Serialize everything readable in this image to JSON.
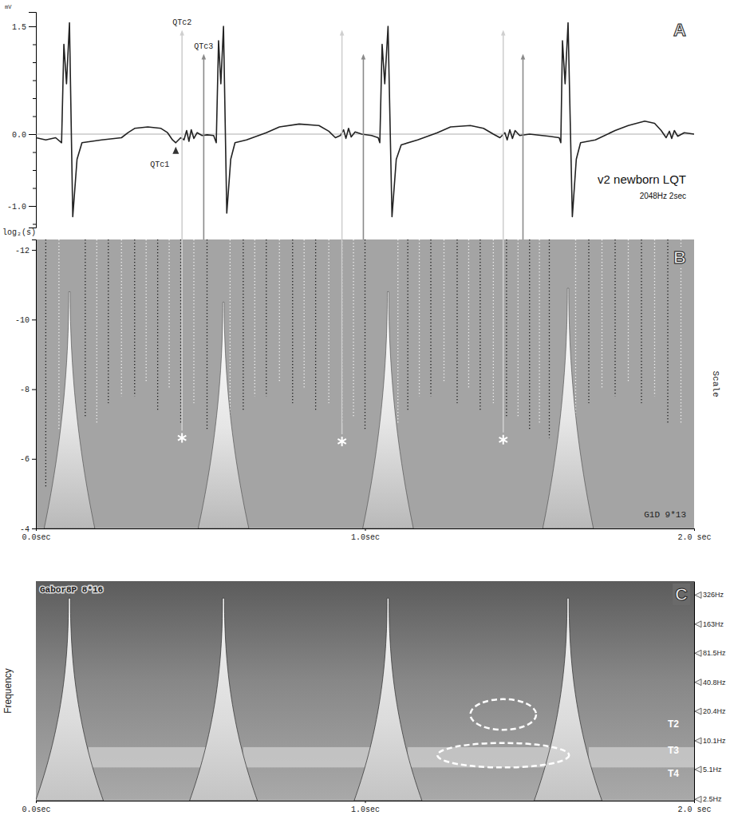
{
  "chart_data": [
    {
      "type": "line",
      "panel": "A",
      "ylabel": "mV",
      "title": "v2 newborn LQT",
      "subtitle": "2048Hz 2sec",
      "xlim": [
        0,
        2
      ],
      "ylim": [
        -1.3,
        1.7
      ],
      "yticks": [
        1.5,
        {
          "value": 0,
          "label": "0.0"
        },
        {
          "value": -1,
          "label": "-1.0"
        }
      ],
      "yticks_minor": [
        -1.25,
        -0.75,
        -0.5,
        -0.25,
        0.25,
        0.5,
        0.75,
        1,
        1.25
      ],
      "tick_labels": "y",
      "baseline": 0,
      "x": [
        0,
        0.03,
        0.06,
        0.078,
        0.085,
        0.093,
        0.102,
        0.112,
        0.125,
        0.14,
        0.2,
        0.26,
        0.28,
        0.3,
        0.34,
        0.38,
        0.4,
        0.415,
        0.425,
        0.44,
        0.45,
        0.458,
        0.465,
        0.472,
        0.48,
        0.49,
        0.505,
        0.52,
        0.54,
        0.548,
        0.555,
        0.562,
        0.57,
        0.58,
        0.592,
        0.605,
        0.64,
        0.7,
        0.74,
        0.8,
        0.86,
        0.89,
        0.91,
        0.925,
        0.935,
        0.942,
        0.95,
        0.958,
        0.97,
        0.99,
        1.02,
        1.04,
        1.045,
        1.052,
        1.06,
        1.07,
        1.082,
        1.095,
        1.11,
        1.16,
        1.22,
        1.26,
        1.32,
        1.36,
        1.39,
        1.41,
        1.425,
        1.432,
        1.44,
        1.448,
        1.456,
        1.47,
        1.5,
        1.56,
        1.59,
        1.595,
        1.6,
        1.608,
        1.617,
        1.63,
        1.642,
        1.655,
        1.7,
        1.76,
        1.8,
        1.85,
        1.88,
        1.9,
        1.915,
        1.925,
        1.932,
        1.94,
        1.95,
        1.97,
        2
      ],
      "series": [
        {
          "color": "#222222",
          "values": [
            -0.05,
            -0.08,
            -0.05,
            -0.12,
            1.25,
            0.7,
            1.55,
            -1.15,
            -0.35,
            -0.12,
            -0.08,
            -0.05,
            0.02,
            0.08,
            0.1,
            0.08,
            0.02,
            -0.08,
            -0.12,
            -0.05,
            -0.08,
            0.05,
            -0.1,
            0.06,
            -0.06,
            0.02,
            -0.02,
            -0.01,
            -0.02,
            -0.12,
            1.3,
            0.7,
            1.5,
            -1.1,
            -0.35,
            -0.12,
            -0.08,
            0.02,
            0.1,
            0.14,
            0.12,
            0.04,
            -0.05,
            -0.02,
            0.06,
            -0.06,
            0.08,
            -0.04,
            0.03,
            0,
            -0.02,
            -0.05,
            -0.12,
            1.25,
            0.7,
            1.5,
            -1.15,
            -0.35,
            -0.15,
            -0.08,
            0.02,
            0.1,
            0.12,
            0.08,
            0,
            -0.05,
            0.02,
            -0.08,
            0.06,
            -0.06,
            0.05,
            -0.02,
            0,
            -0.03,
            -0.05,
            -0.12,
            1.3,
            0.7,
            1.55,
            -1.15,
            -0.35,
            -0.12,
            -0.08,
            0.05,
            0.12,
            0.18,
            0.15,
            0.05,
            -0.05,
            0.04,
            -0.06,
            0.05,
            -0.03,
            0.02,
            0
          ]
        }
      ],
      "annotations": [
        {
          "text": "QTc1",
          "x": 0.425,
          "y": -0.12
        }
      ],
      "qtc_lines": [
        {
          "label": "QTc2",
          "color": "#cfcfcf",
          "x": [
            0.444,
            0.93,
            1.42
          ]
        },
        {
          "label": "QTc3",
          "color": "#8a8a8a",
          "x": [
            0.51,
            0.995,
            1.48
          ]
        }
      ]
    },
    {
      "type": "scalogram",
      "panel": "B",
      "ylabel": "log₂(s)",
      "ylabel_right": "Scale",
      "label": "G1D 9*13",
      "xlim": [
        0,
        2
      ],
      "ylim": [
        -12.3,
        -4
      ],
      "xticks": [
        {
          "value": 0,
          "label": "0.0sec"
        },
        {
          "value": 1,
          "label": "1.0sec"
        },
        {
          "value": 2,
          "label": "2.0 sec"
        }
      ],
      "yticks": [
        -12,
        -10,
        -8,
        -6,
        -4
      ],
      "maxima_lines": [
        {
          "color": "#1a1a1a",
          "x": [
            0.03,
            0.15,
            0.22,
            0.3,
            0.37,
            0.44,
            0.52,
            0.63,
            0.7,
            0.78,
            0.85,
            0.93,
            1.0,
            1.13,
            1.2,
            1.28,
            1.35,
            1.43,
            1.5,
            1.56,
            1.68,
            1.76,
            1.84,
            1.92
          ],
          "bottom": [
            -5.2,
            -7.2,
            -7.6,
            -7.8,
            -7.4,
            -7.0,
            -6.8,
            -7.4,
            -7.8,
            -7.6,
            -7.4,
            -7.0,
            -6.8,
            -7.4,
            -7.8,
            -7.6,
            -7.4,
            -7.2,
            -6.8,
            -6.6,
            -7.6,
            -7.8,
            -7.6,
            -7.0
          ]
        },
        {
          "color": "#f2f2f2",
          "x": [
            0.07,
            0.185,
            0.26,
            0.335,
            0.405,
            0.48,
            0.59,
            0.665,
            0.74,
            0.815,
            0.89,
            0.965,
            1.1,
            1.165,
            1.24,
            1.315,
            1.39,
            1.465,
            1.53,
            1.64,
            1.72,
            1.8,
            1.88,
            1.96
          ],
          "bottom": [
            -6.8,
            -7.0,
            -7.8,
            -8.2,
            -8.0,
            -7.6,
            -7.2,
            -7.8,
            -8.2,
            -8.0,
            -7.6,
            -7.2,
            -7.0,
            -7.8,
            -8.2,
            -8.0,
            -7.6,
            -7.2,
            -7.0,
            -7.2,
            -8.0,
            -8.2,
            -7.8,
            -7.0
          ]
        }
      ],
      "cones": {
        "x": [
          0.102,
          0.57,
          1.07,
          1.617
        ],
        "top": [
          -10.8,
          -10.5,
          -10.8,
          -10.9
        ]
      },
      "markers": {
        "x": [
          0.444,
          0.93,
          1.42
        ],
        "y": [
          -6.6,
          -6.5,
          -6.55
        ]
      }
    },
    {
      "type": "spectrogram",
      "panel": "C",
      "label": "Gabor8P 8*16",
      "ylabel": "Frequency",
      "log": "y",
      "xlim": [
        0,
        2
      ],
      "ylim": [
        2.4,
        450
      ],
      "xticks": [
        {
          "value": 0,
          "label": "0.0sec"
        },
        {
          "value": 1,
          "label": "1.0sec"
        },
        {
          "value": 2,
          "label": "2.0 sec"
        }
      ],
      "yticks": [
        {
          "value": 326,
          "label": "326Hz"
        },
        {
          "value": 163,
          "label": "163Hz"
        },
        {
          "value": 81.5,
          "label": "81.5Hz"
        },
        {
          "value": 40.8,
          "label": "40.8Hz"
        },
        {
          "value": 20.4,
          "label": "20.4Hz"
        },
        {
          "value": 10.1,
          "label": "10.1Hz"
        },
        {
          "value": 5.1,
          "label": "5.1Hz"
        },
        {
          "value": 2.5,
          "label": "2.5Hz"
        }
      ],
      "cones": {
        "x": [
          0.102,
          0.57,
          1.07,
          1.617
        ],
        "top": [
          300,
          300,
          300,
          300
        ]
      },
      "bands": {
        "x0": [
          0.16,
          0.63,
          1.13,
          1.68
        ],
        "x1": [
          0.56,
          1.06,
          1.6,
          2.0
        ],
        "low": 5.3,
        "high": 8.6
      },
      "ellipses": [
        {
          "x": [
            1.32,
            1.52
          ],
          "y": [
            13,
            27
          ]
        },
        {
          "x": [
            1.22,
            1.62
          ],
          "y": [
            5.3,
            9.5
          ]
        }
      ],
      "annotations": [
        {
          "text": "T2",
          "x": 1.92,
          "y": 15
        },
        {
          "text": "T3",
          "x": 1.92,
          "y": 8
        },
        {
          "text": "T4",
          "x": 1.92,
          "y": 4.6
        }
      ]
    }
  ]
}
